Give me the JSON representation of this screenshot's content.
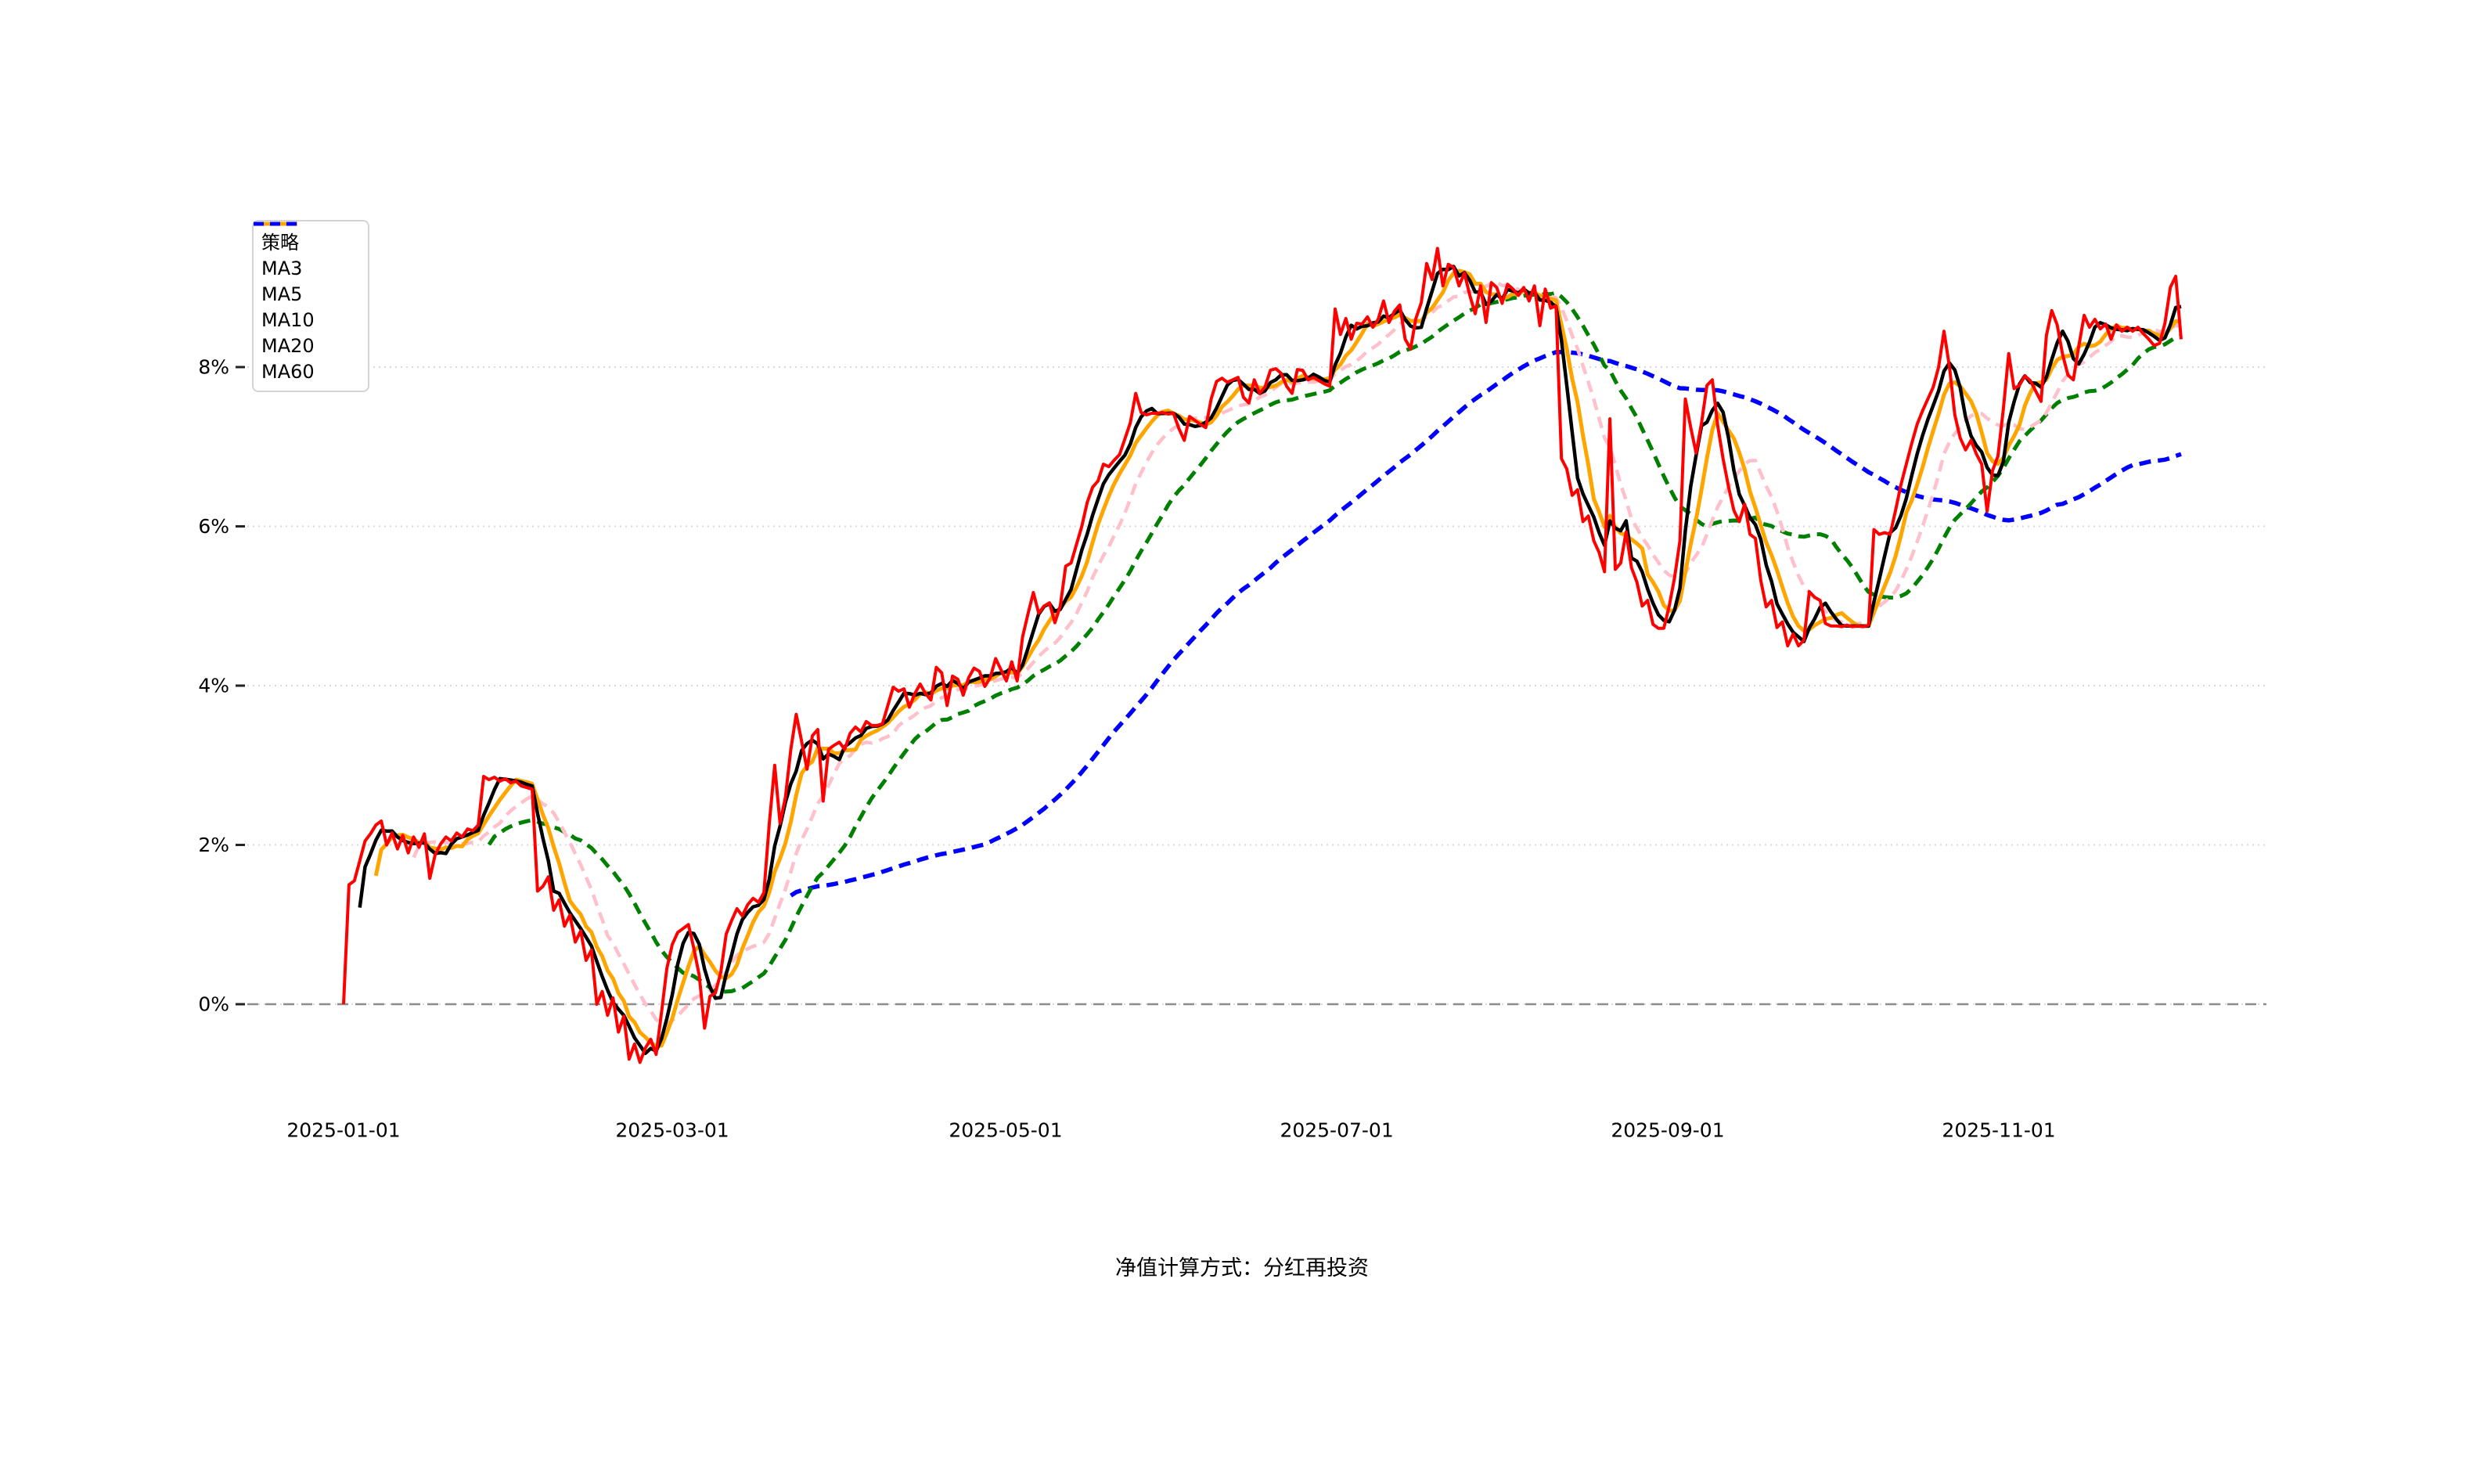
{
  "chart_data": {
    "type": "line",
    "title": "",
    "caption": "净值计算方式：分红再投资",
    "grid": "horizontal-only",
    "legend_position": "upper-left",
    "y_axis": {
      "unit": "%",
      "range": [
        -1.5,
        10
      ],
      "ticks": [
        {
          "value": 8,
          "label": "8%"
        },
        {
          "value": 6,
          "label": "6%"
        },
        {
          "value": 4,
          "label": "4%"
        },
        {
          "value": 2,
          "label": "2%"
        },
        {
          "value": 0,
          "label": "0%"
        }
      ]
    },
    "x_axis": {
      "ticks": [
        {
          "label": "2025-01-01",
          "f": 0.0
        },
        {
          "label": "2025-03-01",
          "f": 0.1789
        },
        {
          "label": "2025-05-01",
          "f": 0.3603
        },
        {
          "label": "2025-07-01",
          "f": 0.5405
        },
        {
          "label": "2025-09-01",
          "f": 0.7206
        },
        {
          "label": "2025-11-01",
          "f": 0.9008
        }
      ]
    },
    "zero_line": {
      "value": 0,
      "color": "#8c8c8c",
      "style": "dashed"
    },
    "series": [
      {
        "name": "策略",
        "role": "strategy",
        "color": "#ff0000",
        "style": "solid",
        "width": 4,
        "values": [
          0.0,
          1.5,
          1.55,
          1.8,
          2.05,
          2.14,
          2.25,
          2.3,
          2.0,
          2.15,
          1.95,
          2.12,
          1.9,
          2.1,
          1.97,
          2.14,
          1.58,
          1.88,
          2.01,
          2.1,
          2.05,
          2.15,
          2.1,
          2.2,
          2.18,
          2.25,
          2.86,
          2.82,
          2.85,
          2.8,
          2.83,
          2.78,
          2.8,
          2.74,
          2.72,
          2.7,
          1.42,
          1.48,
          1.6,
          1.18,
          1.31,
          0.98,
          1.12,
          0.78,
          0.92,
          0.55,
          0.68,
          0.0,
          0.16,
          -0.14,
          0.08,
          -0.35,
          -0.15,
          -0.69,
          -0.5,
          -0.73,
          -0.55,
          -0.44,
          -0.63,
          -0.1,
          0.45,
          0.75,
          0.9,
          0.95,
          1.0,
          0.7,
          0.36,
          -0.3,
          0.1,
          0.14,
          0.4,
          0.88,
          1.05,
          1.2,
          1.11,
          1.25,
          1.33,
          1.28,
          1.4,
          2.27,
          3.0,
          2.27,
          2.6,
          3.2,
          3.64,
          3.3,
          2.95,
          3.37,
          3.45,
          2.55,
          3.2,
          3.25,
          3.29,
          3.2,
          3.4,
          3.48,
          3.42,
          3.55,
          3.5,
          3.5,
          3.52,
          3.75,
          3.98,
          3.93,
          3.96,
          3.73,
          3.9,
          4.02,
          3.9,
          3.82,
          4.23,
          4.16,
          3.75,
          4.12,
          4.08,
          3.88,
          4.1,
          4.22,
          4.18,
          3.99,
          4.1,
          4.34,
          4.2,
          4.06,
          4.3,
          4.06,
          4.61,
          4.9,
          5.17,
          4.91,
          5.0,
          5.04,
          4.79,
          5.0,
          5.5,
          5.54,
          5.77,
          6.0,
          6.3,
          6.49,
          6.57,
          6.78,
          6.75,
          6.83,
          6.9,
          7.1,
          7.3,
          7.67,
          7.43,
          7.4,
          7.42,
          7.42,
          7.43,
          7.41,
          7.42,
          7.23,
          7.08,
          7.38,
          7.33,
          7.28,
          7.24,
          7.6,
          7.82,
          7.86,
          7.81,
          7.84,
          7.87,
          7.62,
          7.55,
          7.84,
          7.67,
          7.75,
          7.96,
          7.98,
          7.92,
          7.76,
          7.67,
          7.97,
          7.96,
          7.84,
          7.87,
          7.83,
          7.79,
          7.76,
          8.73,
          8.41,
          8.61,
          8.35,
          8.55,
          8.54,
          8.63,
          8.5,
          8.6,
          8.83,
          8.56,
          8.7,
          8.78,
          8.35,
          8.23,
          8.61,
          8.81,
          9.3,
          9.1,
          9.49,
          9.02,
          9.29,
          9.25,
          9.02,
          9.18,
          8.9,
          8.67,
          9.02,
          8.56,
          9.06,
          9.0,
          8.8,
          9.04,
          8.98,
          8.9,
          9.0,
          8.83,
          9.02,
          8.52,
          8.98,
          8.74,
          8.77,
          6.85,
          6.72,
          6.39,
          6.46,
          6.06,
          6.13,
          5.82,
          5.67,
          5.43,
          7.35,
          5.46,
          5.54,
          5.93,
          5.48,
          5.3,
          5.0,
          5.07,
          4.77,
          4.72,
          4.72,
          5.0,
          5.36,
          5.82,
          7.6,
          7.24,
          6.92,
          7.3,
          7.77,
          7.84,
          7.27,
          6.85,
          6.5,
          6.2,
          6.06,
          6.28,
          5.9,
          5.85,
          5.32,
          4.99,
          5.07,
          4.73,
          4.8,
          4.5,
          4.65,
          4.5,
          4.57,
          5.18,
          5.11,
          5.07,
          4.78,
          4.75,
          4.75,
          4.74,
          4.76,
          4.74,
          4.75,
          4.74,
          4.76,
          5.96,
          5.9,
          5.92,
          5.9,
          6.2,
          6.52,
          6.78,
          7.04,
          7.28,
          7.45,
          7.6,
          7.75,
          8.0,
          8.45,
          8.01,
          7.4,
          7.11,
          6.96,
          7.08,
          6.91,
          6.78,
          6.19,
          6.7,
          6.88,
          7.47,
          8.17,
          7.73,
          7.77,
          7.89,
          7.83,
          7.7,
          7.57,
          8.4,
          8.71,
          8.53,
          8.16,
          7.9,
          7.84,
          8.26,
          8.65,
          8.5,
          8.6,
          8.48,
          8.54,
          8.35,
          8.53,
          8.45,
          8.5,
          8.45,
          8.5,
          8.42,
          8.35,
          8.27,
          8.3,
          8.55,
          9.0,
          9.14,
          8.35
        ]
      }
    ],
    "moving_averages": [
      {
        "name": "MA3",
        "window": 3,
        "window_samples": 4,
        "color": "#000000",
        "style": "solid",
        "width": 4.5
      },
      {
        "name": "MA5",
        "window": 5,
        "window_samples": 7,
        "color": "#ffa500",
        "style": "solid",
        "width": 5
      },
      {
        "name": "MA10",
        "window": 10,
        "window_samples": 14,
        "color": "#ffc0cb",
        "style": "dashed",
        "width": 4.5
      },
      {
        "name": "MA20",
        "window": 20,
        "window_samples": 28,
        "color": "#008000",
        "style": "dashed",
        "width": 5
      },
      {
        "name": "MA60",
        "window": 60,
        "window_samples": 84,
        "color": "#0000ff",
        "style": "dashed",
        "width": 5.5
      }
    ],
    "legend": [
      "策略",
      "MA3",
      "MA5",
      "MA10",
      "MA20",
      "MA60"
    ]
  }
}
